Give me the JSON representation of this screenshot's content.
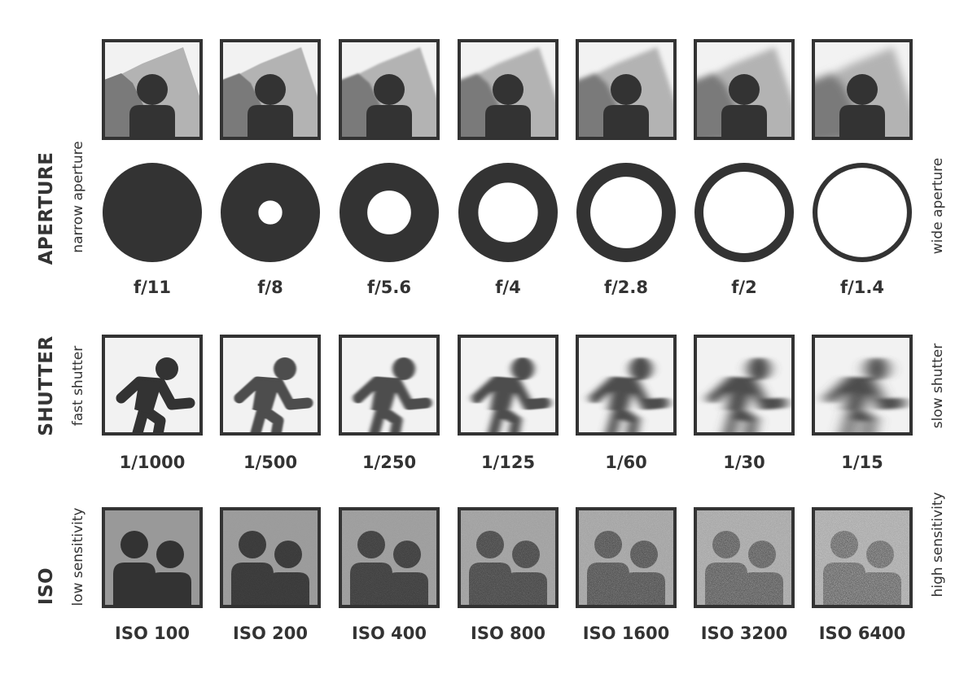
{
  "aperture": {
    "title": "APERTURE",
    "left_label": "narrow aperture",
    "right_label": "wide aperture",
    "settings": [
      {
        "label": "f/11",
        "ring": 0.5,
        "blur": 0
      },
      {
        "label": "f/8",
        "ring": 0.38,
        "blur": 0.5
      },
      {
        "label": "f/5.6",
        "ring": 0.28,
        "blur": 1.2
      },
      {
        "label": "f/4",
        "ring": 0.2,
        "blur": 2
      },
      {
        "label": "f/2.8",
        "ring": 0.14,
        "blur": 3
      },
      {
        "label": "f/2",
        "ring": 0.09,
        "blur": 4
      },
      {
        "label": "f/1.4",
        "ring": 0.05,
        "blur": 5
      }
    ]
  },
  "shutter": {
    "title": "SHUTTER",
    "left_label": "fast shutter",
    "right_label": "slow shutter",
    "settings": [
      {
        "label": "1/1000",
        "blur": 0
      },
      {
        "label": "1/500",
        "blur": 0.6
      },
      {
        "label": "1/250",
        "blur": 1.5
      },
      {
        "label": "1/125",
        "blur": 2.5
      },
      {
        "label": "1/60",
        "blur": 3.5
      },
      {
        "label": "1/30",
        "blur": 4.5
      },
      {
        "label": "1/15",
        "blur": 5.5
      }
    ]
  },
  "iso": {
    "title": "ISO",
    "left_label": "low sensitivity",
    "right_label": "high sensitivity",
    "settings": [
      {
        "label": "ISO 100",
        "noise": 0
      },
      {
        "label": "ISO 200",
        "noise": 0.1
      },
      {
        "label": "ISO 400",
        "noise": 0.2
      },
      {
        "label": "ISO 800",
        "noise": 0.35
      },
      {
        "label": "ISO 1600",
        "noise": 0.5
      },
      {
        "label": "ISO 3200",
        "noise": 0.65
      },
      {
        "label": "ISO 6400",
        "noise": 0.8
      }
    ]
  },
  "colors": {
    "ink": "#333333",
    "frame_bg": "#f2f2f2",
    "mountain_dark": "#7a7a7a",
    "mountain_light": "#b3b3b3",
    "iso_bg": "#999999"
  }
}
